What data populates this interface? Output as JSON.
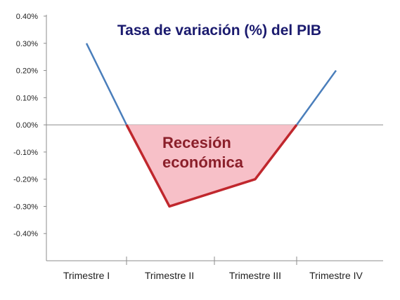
{
  "chart_data": {
    "type": "line",
    "title": "Tasa de variación (%) del PIB",
    "categories": [
      "Trimestre I",
      "Trimestre II",
      "Trimestre III",
      "Trimestre IV"
    ],
    "ylim": [
      -0.5,
      0.4
    ],
    "yticks": [
      0.4,
      0.3,
      0.2,
      0.1,
      0.0,
      -0.1,
      -0.2,
      -0.3,
      -0.4
    ],
    "ytick_labels": [
      "0.40%",
      "0.30%",
      "0.20%",
      "0.10%",
      "0.00%",
      "-0.10%",
      "-0.20%",
      "-0.30%",
      "-0.40%"
    ],
    "grid": false,
    "series": [
      {
        "x": [
          0.5,
          1.0,
          1.5,
          2.5,
          3.0,
          3.5
        ],
        "values": [
          0.3,
          0.0,
          -0.3,
          -0.2,
          0.0,
          0.2
        ],
        "color": "#4a7ebb"
      }
    ],
    "annotation": {
      "lines": [
        "Recesión",
        "económica"
      ],
      "fill_color": "#f7c0c8",
      "text_color": "#8b1f2a",
      "line_color": "#c0272d"
    }
  }
}
